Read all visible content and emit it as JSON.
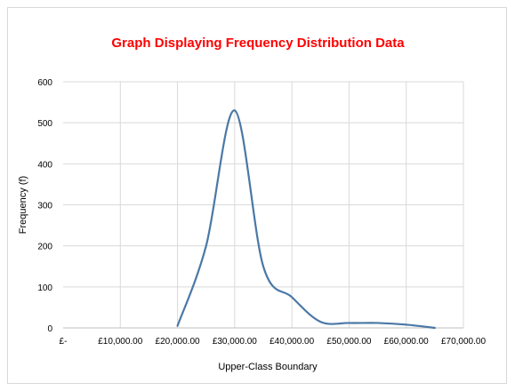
{
  "chart_data": {
    "type": "line",
    "title": "Graph Displaying Frequency Distribution Data",
    "xlabel": "Upper-Class Boundary",
    "ylabel": "Frequency (f)",
    "xlim": [
      0,
      70000
    ],
    "ylim": [
      0,
      600
    ],
    "x_ticks": [
      0,
      10000,
      20000,
      30000,
      40000,
      50000,
      60000,
      70000
    ],
    "x_tick_labels": [
      "£-",
      "£10,000.00",
      "£20,000.00",
      "£30,000.00",
      "£40,000.00",
      "£50,000.00",
      "£60,000.00",
      "£70,000.00"
    ],
    "y_ticks": [
      0,
      100,
      200,
      300,
      400,
      500,
      600
    ],
    "y_tick_labels": [
      "0",
      "100",
      "200",
      "300",
      "400",
      "500",
      "600"
    ],
    "grid": true,
    "smooth": true,
    "series": [
      {
        "x": [
          20000,
          25000,
          30000,
          35000,
          40000,
          45000,
          50000,
          55000,
          60000,
          65000
        ],
        "values": [
          5,
          200,
          530,
          150,
          75,
          15,
          12,
          12,
          8,
          0
        ]
      }
    ],
    "colors": {
      "title": "#ff0000",
      "line": "#4a78a6",
      "grid": "#d9d9d9",
      "axis": "#bfbfbf"
    }
  }
}
